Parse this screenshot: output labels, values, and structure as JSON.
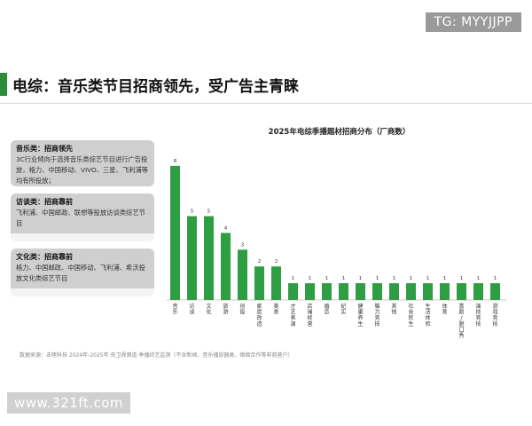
{
  "watermark_top": "TG: MYYJJPP",
  "watermark_bottom": "www.321ft.com",
  "page_title": "电综：音乐类节目招商领先，受广告主青睐",
  "cards": [
    {
      "head": "音乐类：招商领先",
      "body": "3C行业倾向于选择音乐类综艺节目进行广告投放，格力、中国移动、VIVO、三星、飞利浦等均有所投放；"
    },
    {
      "head": "访谈类：招商靠前",
      "body": "飞利浦、中国邮政、联想等投放访谈类综艺节目"
    },
    {
      "head": "文化类：招商靠前",
      "body": "格力、中国邮政、中国移动、飞利浦、希沃投放文化类综艺节目"
    }
  ],
  "source_note": "数据来源：击嗦科技 2024年-2025年 央卫视频道 季播综艺监测（不含新闻、音乐播放器类、络络合作等非商营户）",
  "colors": {
    "accent": "#2e8b3a",
    "bar": "#2e9e43"
  },
  "chart_data": {
    "type": "bar",
    "title": "2025年电综季播题材招商分布（厂商数）",
    "categories": [
      "音乐",
      "访谈",
      "文化",
      "旅游",
      "创投",
      "家居改造",
      "美食",
      "才艺表演",
      "店铺经营",
      "婚恋",
      "纪实",
      "健康养生",
      "脑力竞技",
      "其他",
      "社会民生",
      "生活体验",
      "体育",
      "喜剧/脱口秀",
      "演技竞技",
      "游戏竞技"
    ],
    "values": [
      8,
      5,
      5,
      4,
      3,
      2,
      2,
      1,
      1,
      1,
      1,
      1,
      1,
      1,
      1,
      1,
      1,
      1,
      1,
      1
    ],
    "ylim": [
      0,
      9
    ],
    "grid": false,
    "legend": "none"
  }
}
